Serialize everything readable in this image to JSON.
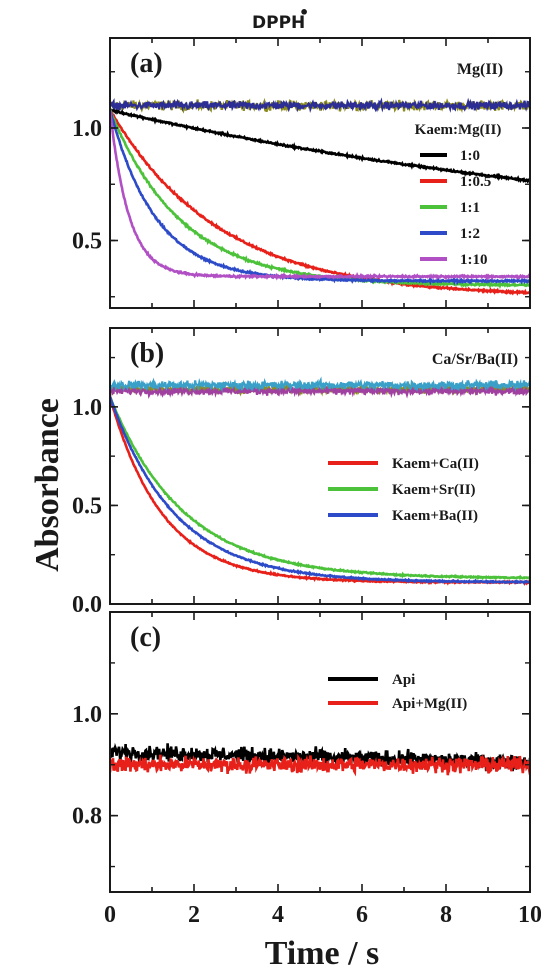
{
  "figure": {
    "title": "DPPH",
    "title_superscript": "•",
    "ylabel": "Absorbance",
    "xlabel": "Time / s",
    "x_ticks": [
      "0",
      "2",
      "4",
      "6",
      "8",
      "10"
    ]
  },
  "chart_data": [
    {
      "type": "line",
      "panel": "(a)",
      "annotation": "Mg(II)",
      "legend_title": "Kaem:Mg(II)",
      "xlim": [
        0,
        10
      ],
      "ylim": [
        0.2,
        1.4
      ],
      "y_ticks": [
        {
          "value": 1.0,
          "label": "1.0"
        },
        {
          "value": 0.5,
          "label": "0.5"
        }
      ],
      "background_series": [
        {
          "color": "#8c8c1e",
          "level": 1.1,
          "noise": 0.03
        },
        {
          "color": "#2d2d96",
          "level": 1.1,
          "noise": 0.025
        }
      ],
      "series": [
        {
          "name": "1:0",
          "color": "#000000",
          "y0": 1.08,
          "yinf": 0.45,
          "tau": 14.5,
          "noise": 0.006
        },
        {
          "name": "1:0.5",
          "color": "#e8201a",
          "y0": 1.08,
          "yinf": 0.25,
          "tau": 2.6,
          "noise": 0.006
        },
        {
          "name": "1:1",
          "color": "#4cc23a",
          "y0": 1.08,
          "yinf": 0.3,
          "tau": 1.7,
          "noise": 0.006
        },
        {
          "name": "1:2",
          "color": "#2d4bc8",
          "y0": 1.08,
          "yinf": 0.32,
          "tau": 1.1,
          "noise": 0.006
        },
        {
          "name": "1:10",
          "color": "#b14fc4",
          "y0": 1.08,
          "yinf": 0.34,
          "tau": 0.45,
          "noise": 0.006
        }
      ]
    },
    {
      "type": "line",
      "panel": "(b)",
      "annotation": "Ca/Sr/Ba(II)",
      "xlim": [
        0,
        10
      ],
      "ylim": [
        0.0,
        1.4
      ],
      "y_ticks": [
        {
          "value": 1.0,
          "label": "1.0"
        },
        {
          "value": 0.5,
          "label": "0.5"
        },
        {
          "value": 0.0,
          "label": "0.0"
        }
      ],
      "background_series": [
        {
          "color": "#8c8c1e",
          "level": 1.09,
          "noise": 0.03
        },
        {
          "color": "#a040a0",
          "level": 1.08,
          "noise": 0.025
        },
        {
          "color": "#3aa0c8",
          "level": 1.11,
          "noise": 0.03
        }
      ],
      "series": [
        {
          "name": "Kaem+Ca(II)",
          "color": "#e8201a",
          "y0": 1.05,
          "yinf": 0.11,
          "tau": 1.25,
          "noise": 0.005
        },
        {
          "name": "Kaem+Sr(II)",
          "color": "#4cc23a",
          "y0": 1.05,
          "yinf": 0.13,
          "tau": 1.75,
          "noise": 0.005
        },
        {
          "name": "Kaem+Ba(II)",
          "color": "#2d4bc8",
          "y0": 1.05,
          "yinf": 0.11,
          "tau": 1.55,
          "noise": 0.005
        }
      ]
    },
    {
      "type": "line",
      "panel": "(c)",
      "xlim": [
        0,
        10
      ],
      "ylim": [
        0.65,
        1.2
      ],
      "y_ticks": [
        {
          "value": 1.0,
          "label": "1.0"
        },
        {
          "value": 0.8,
          "label": "0.8"
        }
      ],
      "background_series": [],
      "series": [
        {
          "name": "Api",
          "color": "#000000",
          "flat": 0.925,
          "drift": -0.02,
          "noise": 0.022
        },
        {
          "name": "Api+Mg(II)",
          "color": "#e8201a",
          "flat": 0.9,
          "drift": 0.0,
          "noise": 0.022
        }
      ]
    }
  ]
}
